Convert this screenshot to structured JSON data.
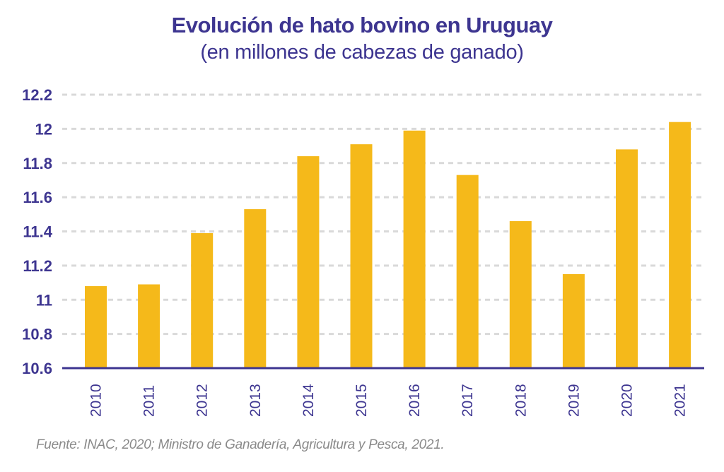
{
  "chart_data": {
    "type": "bar",
    "title": "Evolución de hato bovino en Uruguay",
    "subtitle": "(en millones de cabezas de ganado)",
    "xlabel": "",
    "ylabel": "",
    "categories": [
      "2010",
      "2011",
      "2012",
      "2013",
      "2014",
      "2015",
      "2016",
      "2017",
      "2018",
      "2019",
      "2020",
      "2021"
    ],
    "values": [
      11.08,
      11.09,
      11.39,
      11.53,
      11.84,
      11.91,
      11.99,
      11.73,
      11.46,
      11.15,
      11.88,
      12.04
    ],
    "ylim": [
      10.6,
      12.2
    ],
    "yticks": [
      "10.6",
      "10.8",
      "11",
      "11.2",
      "11.4",
      "11.6",
      "11.8",
      "12",
      "12.2"
    ],
    "grid": true,
    "legend": "none",
    "colors": {
      "bar": "#f5b91a",
      "text": "#3d3590",
      "axis": "#3d3590",
      "grid": "#d9d9d9"
    }
  },
  "source": "Fuente: INAC, 2020; Ministro de Ganadería, Agricultura y Pesca, 2021."
}
